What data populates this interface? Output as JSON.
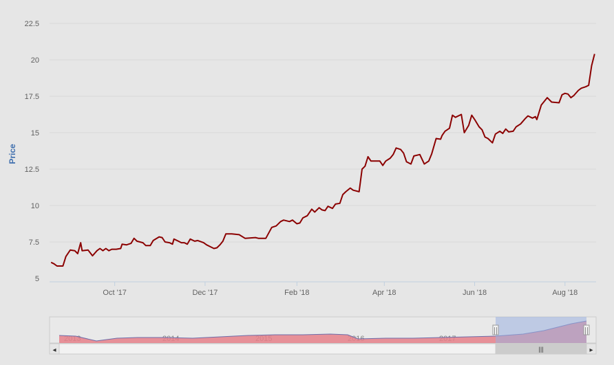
{
  "chart_data": {
    "type": "line",
    "title": "",
    "xlabel": "",
    "ylabel": "Price",
    "ylim": [
      5,
      22.5
    ],
    "yticks": [
      "5",
      "7.5",
      "10",
      "12.5",
      "15",
      "17.5",
      "20",
      "22.5"
    ],
    "xticks": [
      "Oct '17",
      "Dec '17",
      "Feb '18",
      "Apr '18",
      "Jun '18",
      "Aug '18"
    ],
    "grid": true,
    "legend": "none",
    "series": [
      {
        "name": "",
        "color": "#8b0000",
        "points": [
          [
            "2017-08-19",
            6.1
          ],
          [
            "2017-08-21",
            6.0
          ],
          [
            "2017-08-23",
            5.85
          ],
          [
            "2017-08-27",
            5.85
          ],
          [
            "2017-08-29",
            6.5
          ],
          [
            "2017-09-01",
            6.95
          ],
          [
            "2017-09-04",
            6.9
          ],
          [
            "2017-09-06",
            6.7
          ],
          [
            "2017-09-08",
            7.45
          ],
          [
            "2017-09-09",
            6.9
          ],
          [
            "2017-09-13",
            6.95
          ],
          [
            "2017-09-16",
            6.55
          ],
          [
            "2017-09-19",
            6.9
          ],
          [
            "2017-09-21",
            7.05
          ],
          [
            "2017-09-23",
            6.9
          ],
          [
            "2017-09-25",
            7.05
          ],
          [
            "2017-09-27",
            6.9
          ],
          [
            "2017-09-29",
            7.0
          ],
          [
            "2017-10-02",
            7.0
          ],
          [
            "2017-10-05",
            7.05
          ],
          [
            "2017-10-06",
            7.35
          ],
          [
            "2017-10-09",
            7.3
          ],
          [
            "2017-10-12",
            7.4
          ],
          [
            "2017-10-14",
            7.75
          ],
          [
            "2017-10-16",
            7.55
          ],
          [
            "2017-10-20",
            7.45
          ],
          [
            "2017-10-22",
            7.25
          ],
          [
            "2017-10-25",
            7.25
          ],
          [
            "2017-10-27",
            7.6
          ],
          [
            "2017-10-31",
            7.85
          ],
          [
            "2017-11-02",
            7.8
          ],
          [
            "2017-11-04",
            7.5
          ],
          [
            "2017-11-07",
            7.45
          ],
          [
            "2017-11-09",
            7.35
          ],
          [
            "2017-11-10",
            7.7
          ],
          [
            "2017-11-13",
            7.55
          ],
          [
            "2017-11-15",
            7.45
          ],
          [
            "2017-11-17",
            7.45
          ],
          [
            "2017-11-19",
            7.35
          ],
          [
            "2017-11-21",
            7.7
          ],
          [
            "2017-11-24",
            7.55
          ],
          [
            "2017-11-26",
            7.6
          ],
          [
            "2017-11-30",
            7.45
          ],
          [
            "2017-12-02",
            7.3
          ],
          [
            "2017-12-05",
            7.15
          ],
          [
            "2017-12-07",
            7.05
          ],
          [
            "2017-12-09",
            7.1
          ],
          [
            "2017-12-11",
            7.3
          ],
          [
            "2017-12-13",
            7.55
          ],
          [
            "2017-12-15",
            8.05
          ],
          [
            "2017-12-19",
            8.05
          ],
          [
            "2017-12-24",
            8.0
          ],
          [
            "2017-12-28",
            7.75
          ],
          [
            "2018-01-04",
            7.8
          ],
          [
            "2018-01-06",
            7.75
          ],
          [
            "2018-01-11",
            7.75
          ],
          [
            "2018-01-15",
            8.5
          ],
          [
            "2018-01-18",
            8.6
          ],
          [
            "2018-01-21",
            8.9
          ],
          [
            "2018-01-23",
            9.0
          ],
          [
            "2018-01-27",
            8.9
          ],
          [
            "2018-01-29",
            9.0
          ],
          [
            "2018-02-01",
            8.75
          ],
          [
            "2018-02-03",
            8.8
          ],
          [
            "2018-02-05",
            9.15
          ],
          [
            "2018-02-08",
            9.3
          ],
          [
            "2018-02-11",
            9.75
          ],
          [
            "2018-02-13",
            9.55
          ],
          [
            "2018-02-16",
            9.85
          ],
          [
            "2018-02-18",
            9.7
          ],
          [
            "2018-02-20",
            9.65
          ],
          [
            "2018-02-22",
            9.95
          ],
          [
            "2018-02-25",
            9.8
          ],
          [
            "2018-02-27",
            10.1
          ],
          [
            "2018-03-02",
            10.15
          ],
          [
            "2018-03-04",
            10.75
          ],
          [
            "2018-03-06",
            10.95
          ],
          [
            "2018-03-09",
            11.2
          ],
          [
            "2018-03-11",
            11.05
          ],
          [
            "2018-03-15",
            10.95
          ],
          [
            "2018-03-17",
            12.5
          ],
          [
            "2018-03-19",
            12.7
          ],
          [
            "2018-03-21",
            13.35
          ],
          [
            "2018-03-23",
            13.05
          ],
          [
            "2018-03-29",
            13.05
          ],
          [
            "2018-03-31",
            12.75
          ],
          [
            "2018-04-02",
            13.05
          ],
          [
            "2018-04-05",
            13.25
          ],
          [
            "2018-04-07",
            13.5
          ],
          [
            "2018-04-09",
            13.95
          ],
          [
            "2018-04-12",
            13.85
          ],
          [
            "2018-04-14",
            13.6
          ],
          [
            "2018-04-16",
            13.0
          ],
          [
            "2018-04-19",
            12.85
          ],
          [
            "2018-04-21",
            13.4
          ],
          [
            "2018-04-25",
            13.5
          ],
          [
            "2018-04-28",
            12.85
          ],
          [
            "2018-05-01",
            13.05
          ],
          [
            "2018-05-03",
            13.55
          ],
          [
            "2018-05-06",
            14.6
          ],
          [
            "2018-05-09",
            14.55
          ],
          [
            "2018-05-10",
            14.8
          ],
          [
            "2018-05-12",
            15.1
          ],
          [
            "2018-05-15",
            15.3
          ],
          [
            "2018-05-17",
            16.2
          ],
          [
            "2018-05-19",
            16.05
          ],
          [
            "2018-05-23",
            16.25
          ],
          [
            "2018-05-25",
            15.0
          ],
          [
            "2018-05-28",
            15.5
          ],
          [
            "2018-05-30",
            16.2
          ],
          [
            "2018-06-01",
            15.9
          ],
          [
            "2018-06-04",
            15.4
          ],
          [
            "2018-06-06",
            15.2
          ],
          [
            "2018-06-08",
            14.7
          ],
          [
            "2018-06-10",
            14.6
          ],
          [
            "2018-06-13",
            14.3
          ],
          [
            "2018-06-15",
            14.9
          ],
          [
            "2018-06-18",
            15.1
          ],
          [
            "2018-06-20",
            14.95
          ],
          [
            "2018-06-22",
            15.25
          ],
          [
            "2018-06-24",
            15.05
          ],
          [
            "2018-06-27",
            15.1
          ],
          [
            "2018-06-29",
            15.4
          ],
          [
            "2018-07-02",
            15.6
          ],
          [
            "2018-07-05",
            15.95
          ],
          [
            "2018-07-07",
            16.15
          ],
          [
            "2018-07-10",
            16.0
          ],
          [
            "2018-07-12",
            16.1
          ],
          [
            "2018-07-13",
            15.9
          ],
          [
            "2018-07-16",
            16.9
          ],
          [
            "2018-07-20",
            17.4
          ],
          [
            "2018-07-23",
            17.1
          ],
          [
            "2018-07-28",
            17.05
          ],
          [
            "2018-07-30",
            17.6
          ],
          [
            "2018-08-01",
            17.7
          ],
          [
            "2018-08-03",
            17.65
          ],
          [
            "2018-08-05",
            17.4
          ],
          [
            "2018-08-07",
            17.55
          ],
          [
            "2018-08-10",
            17.9
          ],
          [
            "2018-08-12",
            18.05
          ],
          [
            "2018-08-15",
            18.15
          ],
          [
            "2018-08-17",
            18.25
          ],
          [
            "2018-08-19",
            19.6
          ],
          [
            "2018-08-21",
            20.4
          ]
        ]
      }
    ]
  },
  "navigator": {
    "year_labels": [
      "2013",
      "2014",
      "2015",
      "2016",
      "2017"
    ],
    "fill_color": "#e6808a",
    "line_color": "#6d6daa",
    "selection_color": "#9ab0e0",
    "handle_glyph": "||",
    "scrollbar_grip": "|||",
    "scroll_left_icon": "◂",
    "scroll_right_icon": "▸"
  }
}
